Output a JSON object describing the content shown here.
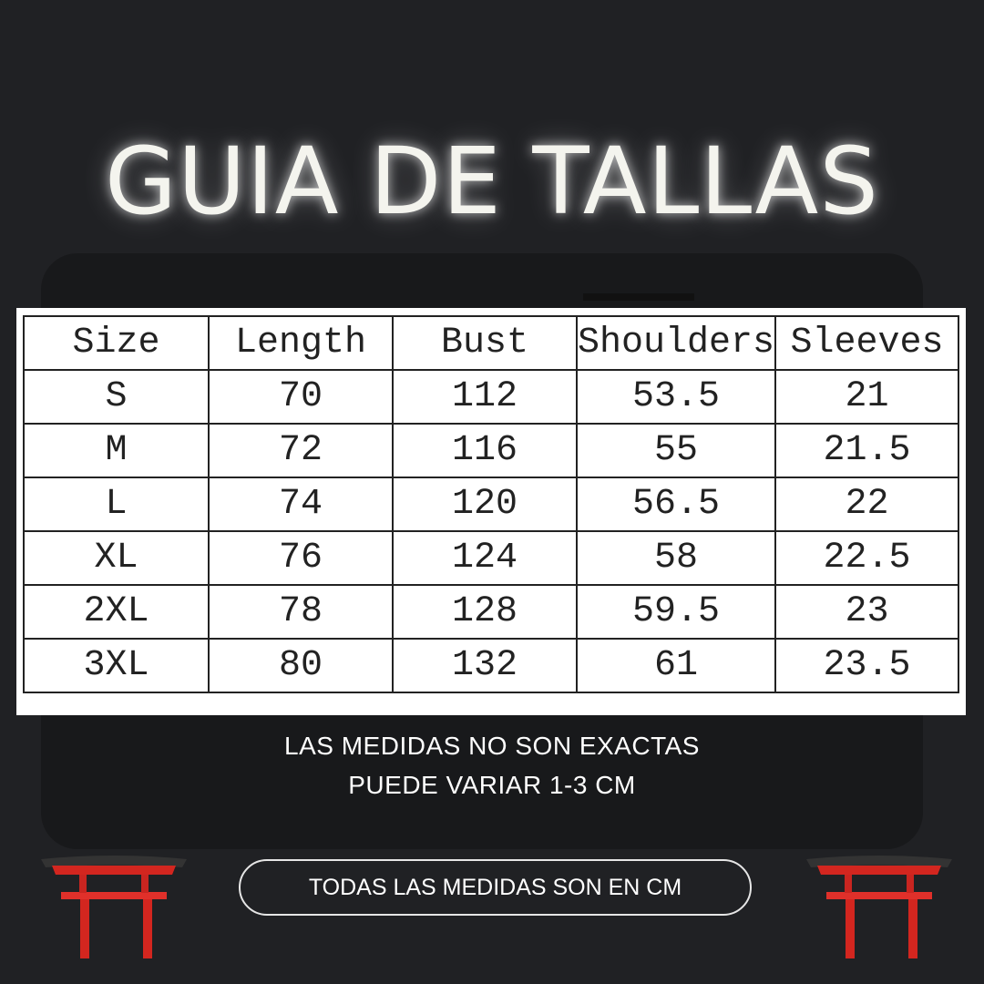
{
  "title": "GUIA DE TALLAS",
  "table": {
    "headers": [
      "Size",
      "Length",
      "Bust",
      "Shoulders",
      "Sleeves"
    ],
    "rows": [
      [
        "S",
        "70",
        "112",
        "53.5",
        "21"
      ],
      [
        "M",
        "72",
        "116",
        "55",
        "21.5"
      ],
      [
        "L",
        "74",
        "120",
        "56.5",
        "22"
      ],
      [
        "XL",
        "76",
        "124",
        "58",
        "22.5"
      ],
      [
        "2XL",
        "78",
        "128",
        "59.5",
        "23"
      ],
      [
        "3XL",
        "80",
        "132",
        "61",
        "23.5"
      ]
    ]
  },
  "notes": [
    "LAS MEDIDAS NO SON EXACTAS",
    "PUEDE VARIAR 1-3 CM"
  ],
  "badge": "TODAS LAS MEDIDAS SON EN CM",
  "colors": {
    "background": "#202124",
    "panel": "#18191b",
    "torii": "#d3261f"
  },
  "icons": [
    "torii-gate-icon",
    "torii-gate-icon"
  ]
}
